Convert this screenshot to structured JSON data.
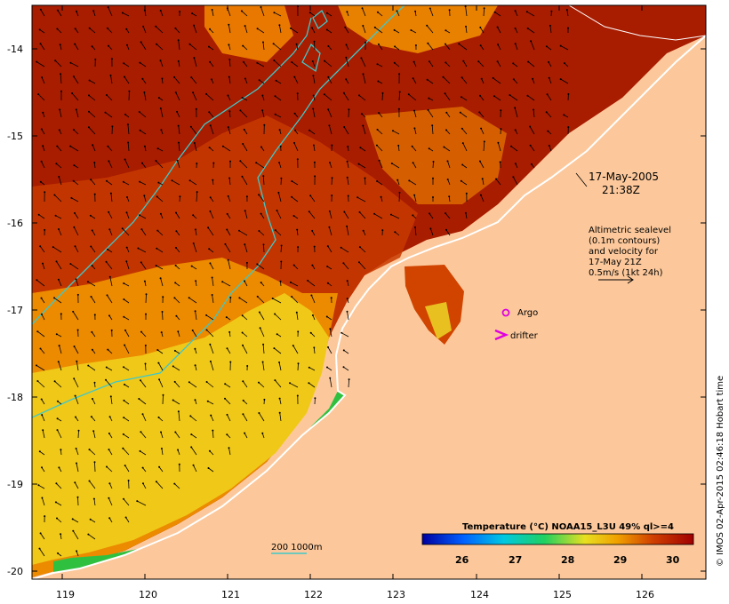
{
  "map": {
    "lat_ticks": [
      "-14",
      "-15",
      "-16",
      "-17",
      "-18",
      "-19",
      "-20"
    ],
    "lon_ticks": [
      "119",
      "120",
      "121",
      "122",
      "123",
      "124",
      "125",
      "126"
    ],
    "date_line1": "17-May-2005",
    "date_line2": "21:38Z",
    "alt_lines": [
      "Altimetric sealevel",
      "(0.1m contours)",
      "and velocity for",
      "17-May 21Z",
      "0.5m/s (1kt 24h)"
    ],
    "argo_label": "Argo",
    "drifter_label": "drifter",
    "contour_legend": "200  1000m",
    "colorbar_title": "Temperature (°C) NOAA15_L3U 49% ql>=4",
    "colorbar_ticks": [
      "26",
      "27",
      "28",
      "29",
      "30"
    ],
    "credit": "© IMOS 02-Apr-2015 02:46:18 Hobart time",
    "colors": {
      "land": "#fcc89b",
      "warm_dark": "#a81c00",
      "warm_mid": "#d04000",
      "orange": "#f08a00",
      "yellow": "#f0d020",
      "green": "#30c040",
      "cyan_contour": "#40c8c8",
      "argo_marker": "#e000e0"
    }
  }
}
